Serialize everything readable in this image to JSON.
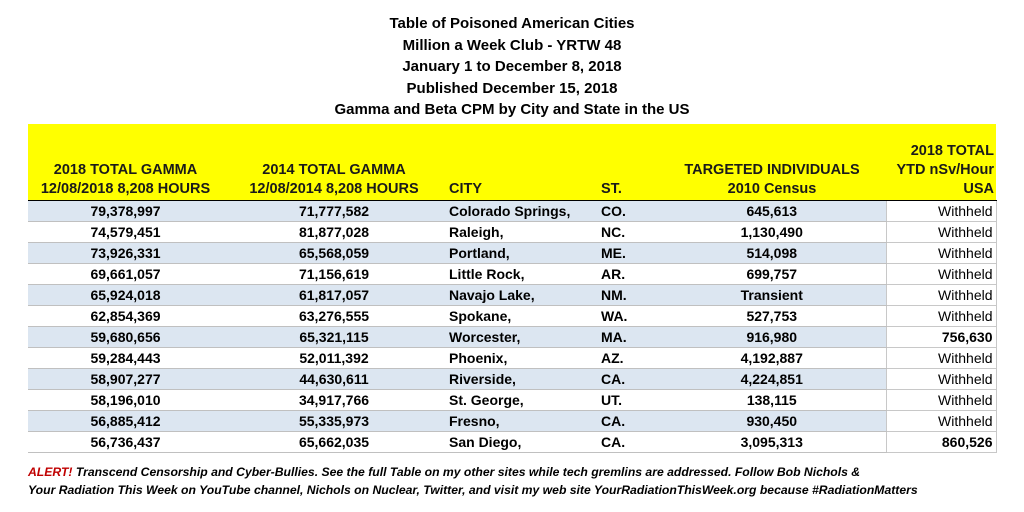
{
  "titles": [
    "Table of Poisoned American Cities",
    "Million a Week Club - YRTW 48",
    "January 1 to December 8, 2018",
    "Published December 15, 2018",
    "Gamma and Beta CPM by City and State in the US"
  ],
  "headers": {
    "gamma_2018": [
      "2018 TOTAL GAMMA",
      "12/08/2018 8,208 HOURS"
    ],
    "gamma_2014": [
      "2014 TOTAL GAMMA",
      "12/08/2014 8,208 HOURS"
    ],
    "city": "CITY",
    "state": "ST.",
    "targeted": [
      "TARGETED INDIVIDUALS",
      "2010 Census"
    ],
    "ytd": [
      "2018 TOTAL",
      "YTD nSv/Hour",
      "USA"
    ]
  },
  "rows": [
    {
      "gamma_2018": "79,378,997",
      "gamma_2014": "71,777,582",
      "city": "Colorado Springs,",
      "state": "CO.",
      "targeted": "645,613",
      "ytd": "Withheld"
    },
    {
      "gamma_2018": "74,579,451",
      "gamma_2014": "81,877,028",
      "city": "Raleigh,",
      "state": "NC.",
      "targeted": "1,130,490",
      "ytd": "Withheld"
    },
    {
      "gamma_2018": "73,926,331",
      "gamma_2014": "65,568,059",
      "city": "Portland,",
      "state": "ME.",
      "targeted": "514,098",
      "ytd": "Withheld"
    },
    {
      "gamma_2018": "69,661,057",
      "gamma_2014": "71,156,619",
      "city": "Little Rock,",
      "state": "AR.",
      "targeted": "699,757",
      "ytd": "Withheld"
    },
    {
      "gamma_2018": "65,924,018",
      "gamma_2014": "61,817,057",
      "city": "Navajo Lake,",
      "state": "NM.",
      "targeted": "Transient",
      "ytd": "Withheld"
    },
    {
      "gamma_2018": "62,854,369",
      "gamma_2014": "63,276,555",
      "city": "Spokane,",
      "state": "WA.",
      "targeted": "527,753",
      "ytd": "Withheld"
    },
    {
      "gamma_2018": "59,680,656",
      "gamma_2014": "65,321,115",
      "city": "Worcester,",
      "state": "MA.",
      "targeted": "916,980",
      "ytd": "756,630"
    },
    {
      "gamma_2018": "59,284,443",
      "gamma_2014": "52,011,392",
      "city": "Phoenix,",
      "state": "AZ.",
      "targeted": "4,192,887",
      "ytd": "Withheld"
    },
    {
      "gamma_2018": "58,907,277",
      "gamma_2014": "44,630,611",
      "city": "Riverside,",
      "state": "CA.",
      "targeted": "4,224,851",
      "ytd": "Withheld"
    },
    {
      "gamma_2018": "58,196,010",
      "gamma_2014": "34,917,766",
      "city": "St. George,",
      "state": "UT.",
      "targeted": "138,115",
      "ytd": "Withheld"
    },
    {
      "gamma_2018": "56,885,412",
      "gamma_2014": "55,335,973",
      "city": "Fresno,",
      "state": "CA.",
      "targeted": "930,450",
      "ytd": "Withheld"
    },
    {
      "gamma_2018": "56,736,437",
      "gamma_2014": "65,662,035",
      "city": "San Diego,",
      "state": "CA.",
      "targeted": "3,095,313",
      "ytd": "860,526"
    }
  ],
  "footer": {
    "alert": "ALERT!",
    "line1": " Transcend Censorship and Cyber-Bullies.  See the full Table on my other sites while tech gremlins are addressed. Follow Bob Nichols &",
    "line2": "Your Radiation This Week on YouTube channel, Nichols on Nuclear, Twitter, and visit my web site YourRadiationThisWeek.org because #RadiationMatters"
  },
  "colors": {
    "header_bg": "#ffff00",
    "row_alt_bg": "#dce6f1",
    "alert": "#c00000"
  }
}
